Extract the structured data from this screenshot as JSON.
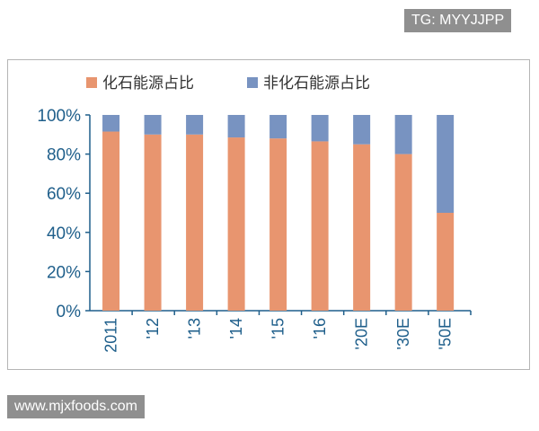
{
  "watermarks": {
    "top": "TG: MYYJJPP",
    "bottom": "www.mjxfoods.com"
  },
  "chart_data": {
    "type": "bar",
    "stacked": true,
    "categories": [
      "2011",
      "'12",
      "'13",
      "'14",
      "'15",
      "'16",
      "'20E",
      "'30E",
      "'50E"
    ],
    "series": [
      {
        "name": "化石能源占比",
        "color": "#e8956f",
        "values": [
          91.5,
          90,
          90,
          88.5,
          88,
          86.5,
          85,
          80,
          50
        ]
      },
      {
        "name": "非化石能源占比",
        "color": "#7893c1",
        "values": [
          8.5,
          10,
          10,
          11.5,
          12,
          13.5,
          15,
          20,
          50
        ]
      }
    ],
    "yticks": [
      "0%",
      "20%",
      "40%",
      "60%",
      "80%",
      "100%"
    ],
    "ylim": [
      0,
      100
    ],
    "legend": "top",
    "axis_color": "#1f5f8b"
  }
}
